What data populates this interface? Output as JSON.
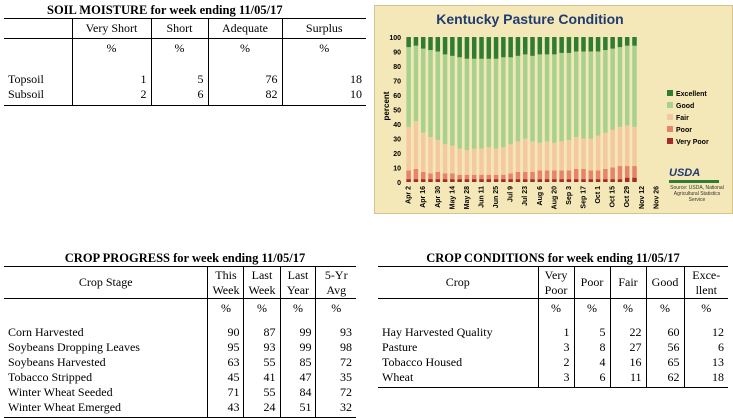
{
  "soil": {
    "title": "SOIL MOISTURE for week ending 11/05/17",
    "headers": [
      "Very Short",
      "Short",
      "Adequate",
      "Surplus"
    ],
    "units": [
      "%",
      "%",
      "%",
      "%"
    ],
    "rows": [
      {
        "label": "Topsoil",
        "values": [
          "1",
          "5",
          "76",
          "18"
        ]
      },
      {
        "label": "Subsoil",
        "values": [
          "2",
          "6",
          "82",
          "10"
        ]
      }
    ]
  },
  "progress": {
    "title": "CROP PROGRESS for week ending 11/05/17",
    "stage_header": "Crop Stage",
    "headers": [
      [
        "This",
        "Week"
      ],
      [
        "Last",
        "Week"
      ],
      [
        "Last",
        "Year"
      ],
      [
        "5-Yr",
        "Avg"
      ]
    ],
    "units": [
      "%",
      "%",
      "%",
      "%"
    ],
    "rows": [
      {
        "label": "Corn Harvested",
        "values": [
          "90",
          "87",
          "99",
          "93"
        ]
      },
      {
        "label": "Soybeans Dropping Leaves",
        "values": [
          "95",
          "93",
          "99",
          "98"
        ]
      },
      {
        "label": "Soybeans Harvested",
        "values": [
          "63",
          "55",
          "85",
          "72"
        ]
      },
      {
        "label": "Tobacco Stripped",
        "values": [
          "45",
          "41",
          "47",
          "35"
        ]
      },
      {
        "label": "Winter Wheat Seeded",
        "values": [
          "71",
          "55",
          "84",
          "72"
        ]
      },
      {
        "label": "Winter Wheat Emerged",
        "values": [
          "43",
          "24",
          "51",
          "32"
        ]
      }
    ]
  },
  "conditions": {
    "title": "CROP CONDITIONS for week ending 11/05/17",
    "crop_header": "Crop",
    "headers": [
      [
        "Very",
        "Poor"
      ],
      [
        "Poor",
        ""
      ],
      [
        "Fair",
        ""
      ],
      [
        "Good",
        ""
      ],
      [
        "Exce-",
        "llent"
      ]
    ],
    "units": [
      "%",
      "%",
      "%",
      "%",
      "%"
    ],
    "rows": [
      {
        "label": "Hay Harvested Quality",
        "values": [
          "1",
          "5",
          "22",
          "60",
          "12"
        ]
      },
      {
        "label": "Pasture",
        "values": [
          "3",
          "8",
          "27",
          "56",
          "6"
        ]
      },
      {
        "label": "Tobacco Housed",
        "values": [
          "2",
          "4",
          "16",
          "65",
          "13"
        ]
      },
      {
        "label": "Wheat",
        "values": [
          "3",
          "6",
          "11",
          "62",
          "18"
        ]
      }
    ]
  },
  "logo": {
    "text": "USDA",
    "source_text": "Source: USDA, National Agricultural Statistics Service"
  },
  "chart_data": {
    "type": "bar",
    "title": "Kentucky Pasture Condition",
    "ylabel": "percent",
    "ylim": [
      0,
      100
    ],
    "yticks": [
      0,
      10,
      20,
      30,
      40,
      50,
      60,
      70,
      80,
      90,
      100
    ],
    "stacked": true,
    "grid": false,
    "legend_position": "right",
    "categories": [
      "Apr 2",
      "Apr 9",
      "Apr 16",
      "Apr 23",
      "Apr 30",
      "May 7",
      "May 14",
      "May 21",
      "May 28",
      "Jun 4",
      "Jun 11",
      "Jun 18",
      "Jun 25",
      "Jul 2",
      "Jul 9",
      "Jul 16",
      "Jul 23",
      "Jul 30",
      "Aug 6",
      "Aug 13",
      "Aug 20",
      "Aug 27",
      "Sep 3",
      "Sep 10",
      "Sep 17",
      "Sep 24",
      "Oct 1",
      "Oct 8",
      "Oct 15",
      "Oct 22",
      "Oct 29",
      "Nov 5",
      "Nov 12",
      "Nov 19",
      "Nov 26"
    ],
    "category_labels": [
      "Apr 2",
      "Apr 16",
      "Apr 30",
      "May 14",
      "May 28",
      "Jun 11",
      "Jun 25",
      "Jul 9",
      "Jul 23",
      "Aug 6",
      "Aug 20",
      "Sep 3",
      "Sep 17",
      "Oct 1",
      "Oct 15",
      "Oct 29",
      "Nov 12",
      "Nov 26"
    ],
    "series": [
      {
        "name": "Very Poor",
        "color": "#a52a2a",
        "values": [
          2,
          2,
          2,
          2,
          2,
          2,
          2,
          2,
          2,
          2,
          2,
          2,
          2,
          2,
          2,
          2,
          2,
          2,
          2,
          2,
          2,
          2,
          2,
          2,
          2,
          2,
          2,
          2,
          2,
          2,
          3,
          3,
          null,
          null,
          null
        ]
      },
      {
        "name": "Poor",
        "color": "#e8826b",
        "values": [
          6,
          7,
          5,
          4,
          5,
          4,
          4,
          3,
          3,
          3,
          3,
          3,
          3,
          3,
          4,
          5,
          5,
          5,
          6,
          6,
          6,
          6,
          6,
          7,
          7,
          6,
          6,
          7,
          8,
          9,
          8,
          8,
          null,
          null,
          null
        ]
      },
      {
        "name": "Fair",
        "color": "#f4c9a0",
        "values": [
          30,
          33,
          27,
          25,
          22,
          20,
          19,
          18,
          17,
          18,
          18,
          19,
          18,
          19,
          20,
          21,
          23,
          21,
          19,
          20,
          19,
          20,
          21,
          22,
          21,
          22,
          24,
          25,
          26,
          27,
          28,
          27,
          null,
          null,
          null
        ]
      },
      {
        "name": "Good",
        "color": "#a9d18e",
        "values": [
          55,
          52,
          58,
          60,
          61,
          62,
          62,
          63,
          63,
          62,
          62,
          61,
          62,
          62,
          60,
          59,
          58,
          59,
          61,
          60,
          61,
          61,
          60,
          59,
          60,
          60,
          58,
          57,
          56,
          55,
          55,
          56,
          null,
          null,
          null
        ]
      },
      {
        "name": "Excellent",
        "color": "#2e7d32",
        "values": [
          7,
          6,
          8,
          9,
          10,
          12,
          13,
          14,
          15,
          15,
          15,
          15,
          15,
          14,
          14,
          13,
          12,
          13,
          12,
          12,
          12,
          11,
          11,
          10,
          10,
          10,
          10,
          9,
          8,
          7,
          6,
          6,
          null,
          null,
          null
        ]
      }
    ]
  }
}
